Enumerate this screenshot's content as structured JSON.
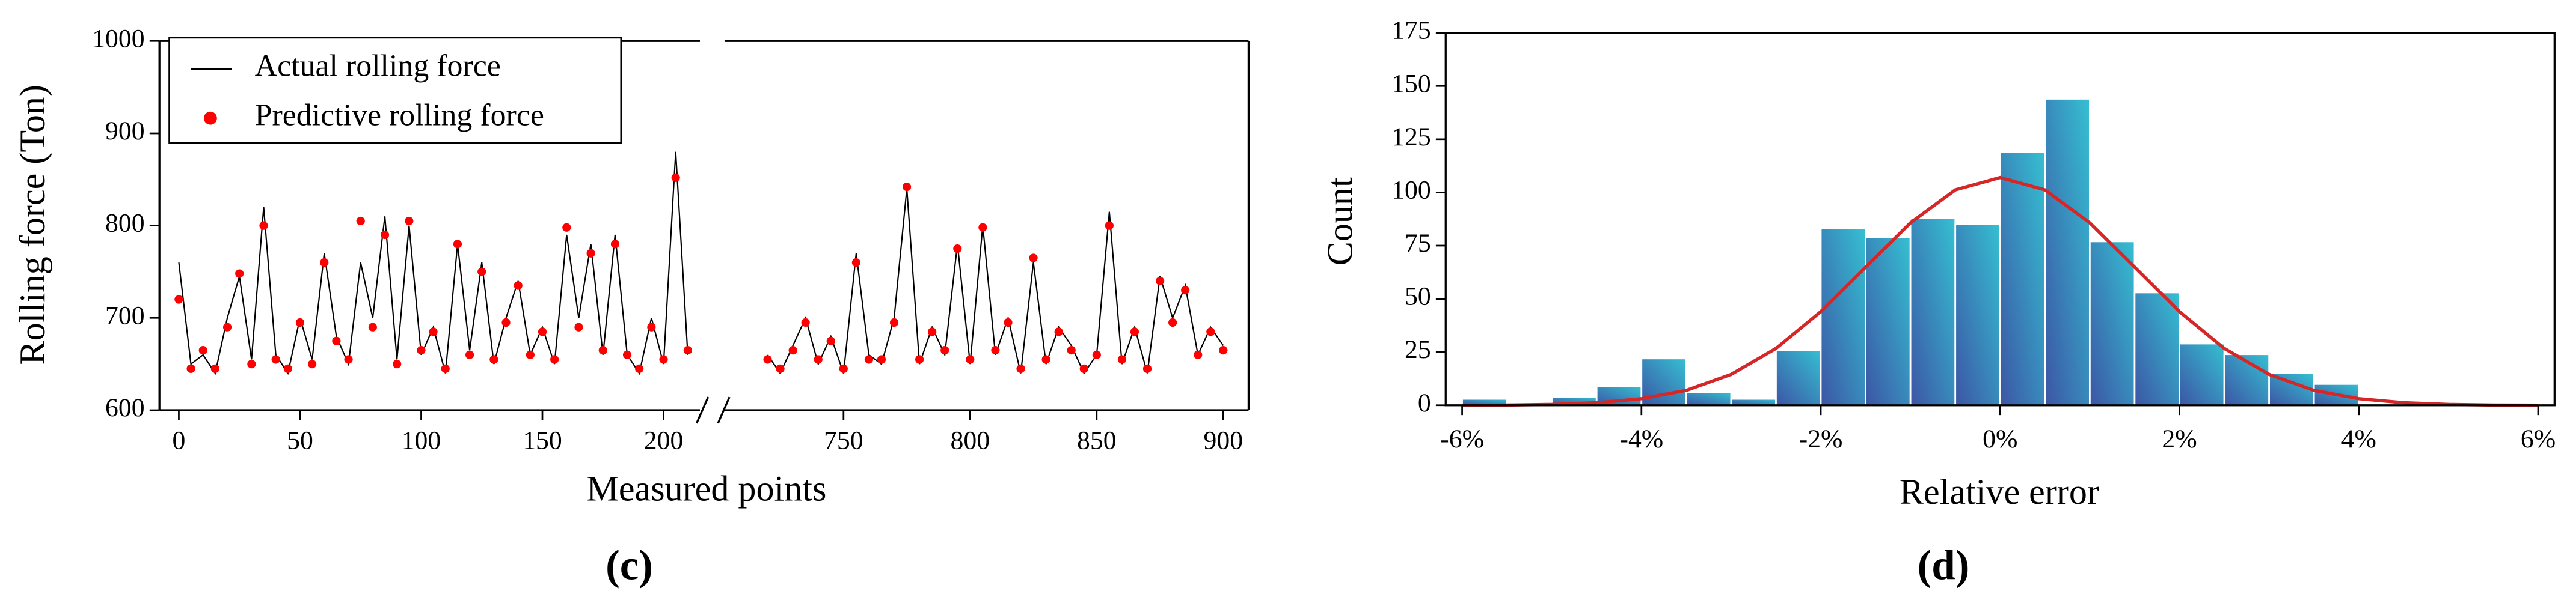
{
  "chart_data": [
    {
      "type": "line",
      "caption": "(c)",
      "xlabel": "Measured points",
      "ylabel": "Rolling force (Ton)",
      "xlim": [
        [
          -8,
          215
        ],
        [
          703,
          910
        ]
      ],
      "xticks": [
        0,
        50,
        100,
        150,
        200,
        750,
        800,
        850,
        900
      ],
      "ylim": [
        600,
        1000
      ],
      "yticks": [
        600,
        700,
        800,
        900,
        1000
      ],
      "legend": "upper left",
      "x": [
        0,
        5,
        10,
        15,
        20,
        25,
        30,
        35,
        40,
        45,
        50,
        55,
        60,
        65,
        70,
        75,
        80,
        85,
        90,
        95,
        100,
        105,
        110,
        115,
        120,
        125,
        130,
        135,
        140,
        145,
        150,
        155,
        160,
        165,
        170,
        175,
        180,
        185,
        190,
        195,
        200,
        205,
        210,
        720,
        725,
        730,
        735,
        740,
        745,
        750,
        755,
        760,
        765,
        770,
        775,
        780,
        785,
        790,
        795,
        800,
        805,
        810,
        815,
        820,
        825,
        830,
        835,
        840,
        845,
        850,
        855,
        860,
        865,
        870,
        875,
        880,
        885,
        890,
        895,
        900
      ],
      "series": [
        {
          "name": "Actual rolling force",
          "mode": "line",
          "color": "#000000",
          "values": [
            760,
            650,
            660,
            640,
            700,
            745,
            655,
            820,
            660,
            640,
            700,
            655,
            770,
            680,
            650,
            760,
            700,
            810,
            655,
            800,
            660,
            690,
            640,
            780,
            665,
            760,
            650,
            700,
            740,
            660,
            690,
            650,
            790,
            700,
            780,
            660,
            790,
            660,
            640,
            700,
            650,
            880,
            660,
            660,
            640,
            670,
            700,
            650,
            680,
            640,
            770,
            660,
            650,
            700,
            840,
            650,
            690,
            660,
            780,
            650,
            800,
            660,
            700,
            640,
            760,
            650,
            690,
            670,
            640,
            660,
            815,
            650,
            690,
            640,
            745,
            700,
            735,
            660,
            690,
            670
          ]
        },
        {
          "name": "Predictive rolling force",
          "mode": "markers",
          "color": "#ff0000",
          "values": [
            720,
            645,
            665,
            645,
            690,
            748,
            650,
            800,
            655,
            645,
            695,
            650,
            760,
            675,
            655,
            805,
            690,
            790,
            650,
            805,
            665,
            685,
            645,
            780,
            660,
            750,
            655,
            695,
            735,
            660,
            685,
            655,
            798,
            690,
            770,
            665,
            780,
            660,
            645,
            690,
            655,
            852,
            665,
            655,
            645,
            665,
            695,
            655,
            675,
            645,
            760,
            655,
            655,
            695,
            842,
            655,
            685,
            665,
            775,
            655,
            798,
            665,
            695,
            645,
            765,
            655,
            685,
            665,
            645,
            660,
            800,
            655,
            685,
            645,
            740,
            695,
            730,
            660,
            685,
            665
          ]
        }
      ]
    },
    {
      "type": "histogram",
      "caption": "(d)",
      "xlabel": "Relative error",
      "ylabel": "Count",
      "xlim": [
        -6,
        6
      ],
      "xticks": [
        {
          "value": -6,
          "label": "-6%"
        },
        {
          "value": -4,
          "label": "-4%"
        },
        {
          "value": -2,
          "label": "-2%"
        },
        {
          "value": 0,
          "label": "0%"
        },
        {
          "value": 2,
          "label": "2%"
        },
        {
          "value": 4,
          "label": "4%"
        },
        {
          "value": 6,
          "label": "6%"
        }
      ],
      "ylim": [
        0,
        175
      ],
      "yticks": [
        0,
        25,
        50,
        75,
        100,
        125,
        150,
        175
      ],
      "bins": [
        -6,
        -5.5,
        -5,
        -4.5,
        -4,
        -3.5,
        -3,
        -2.5,
        -2,
        -1.5,
        -1,
        -0.5,
        0,
        0.5,
        1,
        1.5,
        2,
        2.5,
        3,
        3.5,
        4
      ],
      "counts": [
        3,
        0,
        4,
        9,
        22,
        6,
        3,
        26,
        83,
        79,
        88,
        85,
        119,
        144,
        77,
        53,
        29,
        24,
        15,
        10
      ],
      "bar_gradient": [
        "#3c55a5",
        "#35c0d2"
      ],
      "curve": {
        "color": "#d62728",
        "x": [
          -6,
          -5.5,
          -5,
          -4.5,
          -4,
          -3.5,
          -3,
          -2.5,
          -2,
          -1.5,
          -1,
          -0.5,
          0,
          0.5,
          1,
          1.5,
          2,
          2.5,
          3,
          3.5,
          4,
          4.5,
          5,
          5.5,
          6
        ],
        "values": [
          0.0,
          0.1,
          0.4,
          1.2,
          3.1,
          7.0,
          14.5,
          26.7,
          44.0,
          64.9,
          85.7,
          101.2,
          107,
          101.2,
          85.7,
          64.9,
          44.0,
          26.7,
          14.5,
          7.0,
          3.1,
          1.2,
          0.4,
          0.1,
          0.0
        ]
      }
    }
  ]
}
